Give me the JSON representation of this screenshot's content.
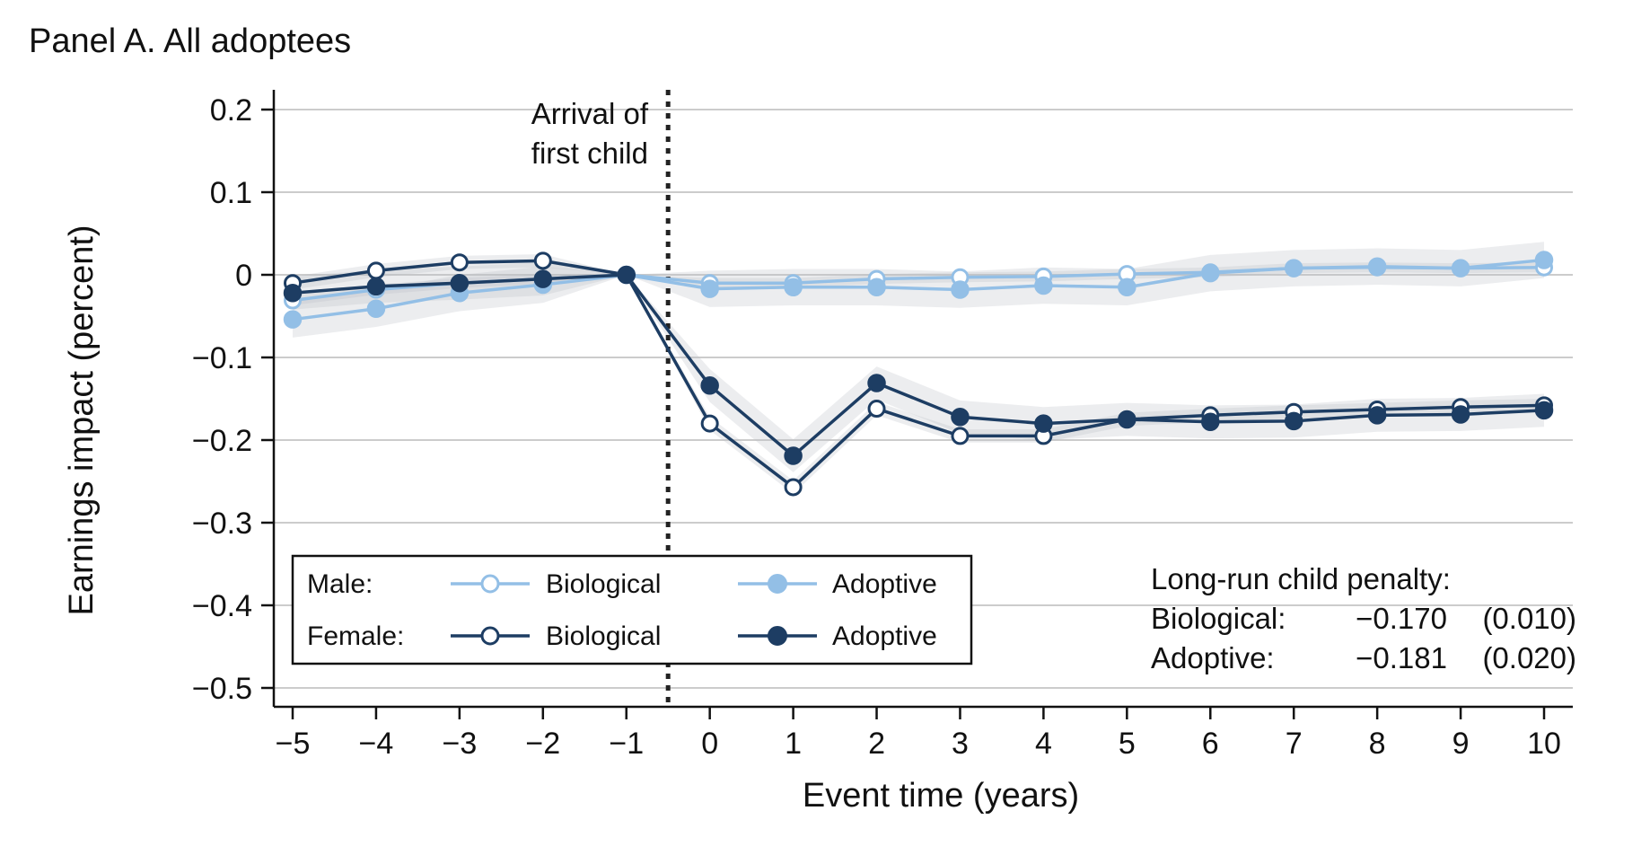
{
  "panel_title": "Panel A. All adoptees",
  "annotation": [
    "Arrival of",
    "first child"
  ],
  "penalty": {
    "title": "Long-run child penalty:",
    "rows": [
      {
        "label": "Biological:",
        "value": "−0.170",
        "se": "(0.010)"
      },
      {
        "label": "Adoptive:",
        "value": "−0.181",
        "se": "(0.020)"
      }
    ]
  },
  "legend": {
    "male_label": "Male:",
    "female_label": "Female:",
    "biological": "Biological",
    "adoptive": "Adoptive"
  },
  "colors": {
    "male": "#93bfe6",
    "female": "#1d3d63",
    "grid": "#cccccc",
    "band": "#b9bec4"
  },
  "chart_data": {
    "type": "line",
    "xlabel": "Event time (years)",
    "ylabel": "Earnings impact (percent)",
    "xlim": [
      -5,
      10
    ],
    "ylim": [
      -0.5,
      0.2
    ],
    "event_line_x": -0.5,
    "x": [
      -5,
      -4,
      -3,
      -2,
      -1,
      0,
      1,
      2,
      3,
      4,
      5,
      6,
      7,
      8,
      9,
      10
    ],
    "x_tick_labels": [
      "−5",
      "−4",
      "−3",
      "−2",
      "−1",
      "0",
      "1",
      "2",
      "3",
      "4",
      "5",
      "6",
      "7",
      "8",
      "9",
      "10"
    ],
    "y_ticks": [
      0.2,
      0.1,
      0,
      -0.1,
      -0.2,
      -0.3,
      -0.4,
      -0.5
    ],
    "y_tick_labels": [
      "0.2",
      "0.1",
      "0",
      "−0.1",
      "−0.2",
      "−0.3",
      "−0.4",
      "−0.5"
    ],
    "series": [
      {
        "name": "Male Biological",
        "group": "male",
        "marker": "hollow",
        "values": [
          -0.031,
          -0.018,
          -0.01,
          -0.005,
          0,
          -0.01,
          -0.01,
          -0.005,
          -0.003,
          -0.002,
          0.001,
          0.003,
          0.008,
          0.009,
          0.008,
          0.009
        ],
        "band": 0.006
      },
      {
        "name": "Male Adoptive",
        "group": "male",
        "marker": "filled",
        "values": [
          -0.054,
          -0.041,
          -0.022,
          -0.012,
          0,
          -0.017,
          -0.015,
          -0.015,
          -0.018,
          -0.013,
          -0.015,
          0.002,
          0.008,
          0.01,
          0.008,
          0.018
        ],
        "band": 0.022
      },
      {
        "name": "Female Biological",
        "group": "female",
        "marker": "hollow",
        "values": [
          -0.01,
          0.005,
          0.015,
          0.017,
          0,
          -0.18,
          -0.257,
          -0.162,
          -0.195,
          -0.195,
          -0.175,
          -0.17,
          -0.166,
          -0.163,
          -0.16,
          -0.158
        ],
        "band": 0.008
      },
      {
        "name": "Female Adoptive",
        "group": "female",
        "marker": "filled",
        "values": [
          -0.022,
          -0.014,
          -0.01,
          -0.005,
          0,
          -0.134,
          -0.219,
          -0.131,
          -0.172,
          -0.18,
          -0.175,
          -0.178,
          -0.177,
          -0.17,
          -0.169,
          -0.164
        ],
        "band": 0.02
      }
    ]
  }
}
